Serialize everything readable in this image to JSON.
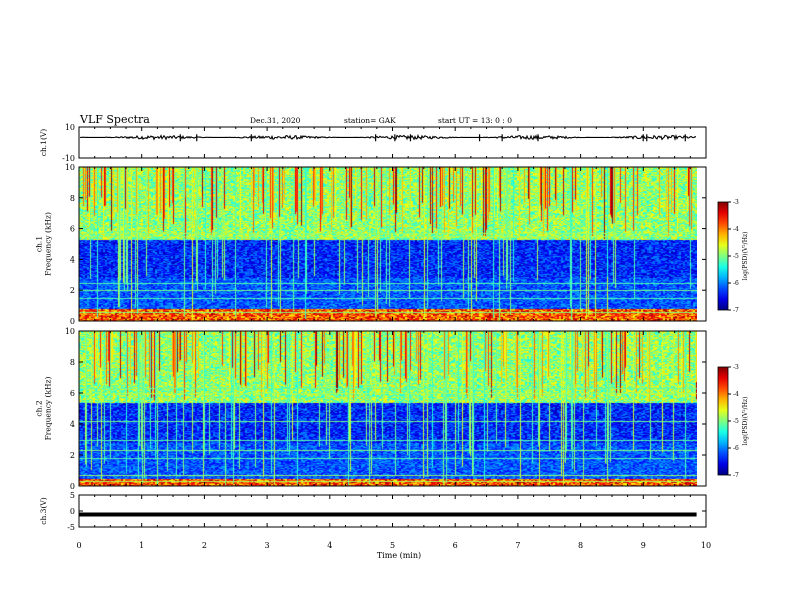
{
  "header": {
    "title": "VLF Spectra",
    "date": "Dec.31, 2020",
    "station": "station= GAK",
    "start": "start  UT =   13: 0  : 0"
  },
  "chart_data": [
    {
      "type": "line",
      "name": "ch1-waveform",
      "ylabel": "ch.1(V)",
      "ylim": [
        -10,
        10
      ],
      "yticks": [
        "10",
        "-10"
      ],
      "xlim": [
        0,
        10
      ],
      "baseline_value": 3.3,
      "noise_amplitude": 1.3
    },
    {
      "type": "heatmap",
      "name": "ch1-spectrogram",
      "ylabel": "ch.1\nFrequency (kHz)",
      "ylim": [
        0,
        10
      ],
      "yticks": [
        "0",
        "2",
        "4",
        "6",
        "8",
        "10"
      ],
      "xlim": [
        0,
        10
      ],
      "data_end_min": 9.85,
      "strong_band_khz": [
        0,
        0.8
      ],
      "high_band_start_khz": 5.3,
      "horizontal_lines_khz": [
        0.6,
        1.5,
        2.0,
        2.5,
        5.5,
        5.7
      ],
      "colorbar": {
        "label": "log(PSD)(V²/Hz)",
        "range": [
          -7,
          -3
        ],
        "ticks": [
          "-3",
          "-4",
          "-5",
          "-6",
          "-7"
        ]
      }
    },
    {
      "type": "heatmap",
      "name": "ch2-spectrogram",
      "ylabel": "ch.2\nFrequency (kHz)",
      "ylim": [
        0,
        10
      ],
      "yticks": [
        "0",
        "2",
        "4",
        "6",
        "8",
        "10"
      ],
      "xlim": [
        0,
        10
      ],
      "data_end_min": 9.85,
      "strong_band_khz": [
        0,
        0.5
      ],
      "high_band_start_khz": 5.4,
      "horizontal_lines_khz": [
        0.3,
        0.7,
        1.8,
        2.3,
        3.0,
        4.2,
        6.0,
        6.3
      ],
      "colorbar": {
        "label": "log(PSD)(V²/Hz)",
        "range": [
          -7,
          -3
        ],
        "ticks": [
          "-3",
          "-4",
          "-5",
          "-6",
          "-7"
        ]
      }
    },
    {
      "type": "line",
      "name": "ch3-waveform",
      "ylabel": "ch.3(V)",
      "ylim": [
        -5,
        5
      ],
      "yticks": [
        "5",
        "0",
        "-5"
      ],
      "xlim": [
        0,
        10
      ],
      "baseline_value": -1.1
    }
  ],
  "xaxis": {
    "label": "Time  (min)",
    "ticks": [
      "0",
      "1",
      "2",
      "3",
      "4",
      "5",
      "6",
      "7",
      "8",
      "9",
      "10"
    ]
  }
}
